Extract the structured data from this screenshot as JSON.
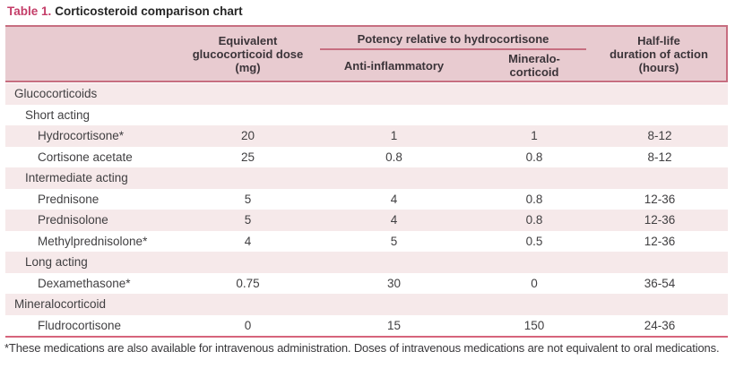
{
  "page": {
    "title_label": "Table 1.",
    "title_text": "Corticosteroid comparison chart"
  },
  "table": {
    "headers": {
      "equivalent_dose_lines": [
        "Equivalent",
        "glucocorticoid dose",
        "(mg)"
      ],
      "potency_group": "Potency relative to hydrocortisone",
      "anti_inflammatory": "Anti-inflammatory",
      "mineralo_lines": [
        "Mineralo-",
        "corticoid"
      ],
      "half_life_lines": [
        "Half-life",
        "duration of action",
        "(hours)"
      ]
    },
    "rows": [
      {
        "kind": "section",
        "label": "Glucocorticoids"
      },
      {
        "kind": "subsection",
        "label": "Short acting"
      },
      {
        "kind": "drug",
        "label": "Hydrocortisone*",
        "dose": "20",
        "anti_inflammatory": "1",
        "mineralocorticoid": "1",
        "half_life": "8-12"
      },
      {
        "kind": "drug",
        "label": "Cortisone acetate",
        "dose": "25",
        "anti_inflammatory": "0.8",
        "mineralocorticoid": "0.8",
        "half_life": "8-12"
      },
      {
        "kind": "subsection",
        "label": "Intermediate acting"
      },
      {
        "kind": "drug",
        "label": "Prednisone",
        "dose": "5",
        "anti_inflammatory": "4",
        "mineralocorticoid": "0.8",
        "half_life": "12-36"
      },
      {
        "kind": "drug",
        "label": "Prednisolone",
        "dose": "5",
        "anti_inflammatory": "4",
        "mineralocorticoid": "0.8",
        "half_life": "12-36"
      },
      {
        "kind": "drug",
        "label": "Methylprednisolone*",
        "dose": "4",
        "anti_inflammatory": "5",
        "mineralocorticoid": "0.5",
        "half_life": "12-36"
      },
      {
        "kind": "subsection",
        "label": "Long acting"
      },
      {
        "kind": "drug",
        "label": "Dexamethasone*",
        "dose": "0.75",
        "anti_inflammatory": "30",
        "mineralocorticoid": "0",
        "half_life": "36-54"
      },
      {
        "kind": "section",
        "label": "Mineralocorticoid"
      },
      {
        "kind": "drug",
        "label": "Fludrocortisone",
        "dose": "0",
        "anti_inflammatory": "15",
        "mineralocorticoid": "150",
        "half_life": "24-36"
      }
    ]
  },
  "footnote": "*These medications are also available for intravenous administration. Doses of intravenous medications are not equivalent to oral medications.",
  "colors": {
    "accent_title": "#c43d68",
    "header_bg": "#e8cbd0",
    "row_alt_bg": "#f6e9ea",
    "rose_border": "#c76e80",
    "bottom_border": "#d6647c",
    "text": "#403f41"
  }
}
